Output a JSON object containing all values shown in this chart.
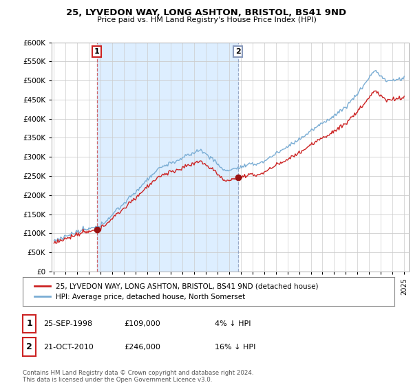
{
  "title1": "25, LYVEDON WAY, LONG ASHTON, BRISTOL, BS41 9ND",
  "title2": "Price paid vs. HM Land Registry's House Price Index (HPI)",
  "legend_line1": "25, LYVEDON WAY, LONG ASHTON, BRISTOL, BS41 9ND (detached house)",
  "legend_line2": "HPI: Average price, detached house, North Somerset",
  "annotation1_date": "25-SEP-1998",
  "annotation1_price": 109000,
  "annotation1_hpi": "4% ↓ HPI",
  "annotation2_date": "21-OCT-2010",
  "annotation2_price": 246000,
  "annotation2_hpi": "16% ↓ HPI",
  "footer": "Contains HM Land Registry data © Crown copyright and database right 2024.\nThis data is licensed under the Open Government Licence v3.0.",
  "hpi_color": "#7aadd4",
  "price_color": "#cc2222",
  "shade_color": "#ddeeff",
  "vline1_color": "#cc4444",
  "vline2_color": "#8899bb",
  "ylim": [
    0,
    600000
  ],
  "yticks": [
    0,
    50000,
    100000,
    150000,
    200000,
    250000,
    300000,
    350000,
    400000,
    450000,
    500000,
    550000,
    600000
  ],
  "background_color": "#ffffff",
  "grid_color": "#cccccc"
}
